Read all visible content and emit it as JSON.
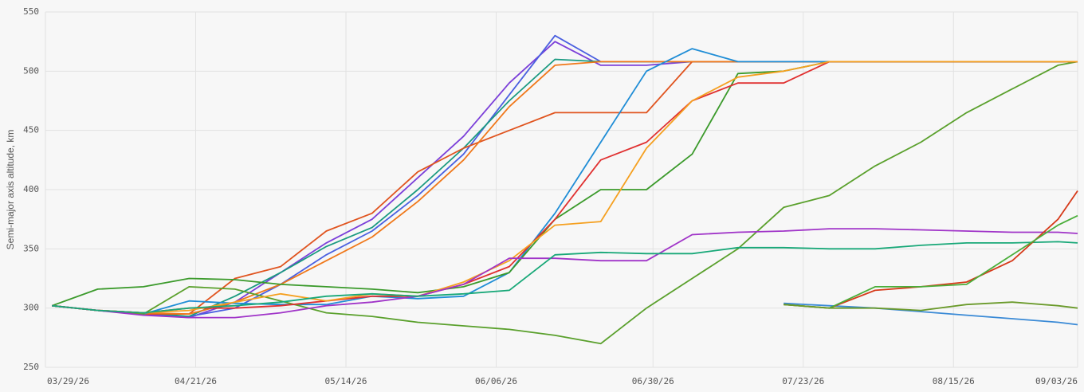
{
  "chart_data": {
    "type": "line",
    "y_label": "Semi-major axis altitude, km",
    "x": [
      "03/30/26",
      "04/06/26",
      "04/13/26",
      "04/20/26",
      "04/27/26",
      "05/04/26",
      "05/11/26",
      "05/18/26",
      "05/25/26",
      "06/01/26",
      "06/08/26",
      "06/15/26",
      "06/22/26",
      "06/29/26",
      "07/06/26",
      "07/13/26",
      "07/20/26",
      "07/27/26",
      "08/03/26",
      "08/10/26",
      "08/17/26",
      "08/24/26",
      "08/31/26",
      "09/03/26"
    ],
    "xlim": [
      "03/29/26",
      "09/03/26"
    ],
    "xticks": [
      "03/29/26",
      "04/21/26",
      "05/14/26",
      "06/06/26",
      "06/30/26",
      "07/23/26",
      "08/15/26",
      "09/03/26"
    ],
    "ylim": [
      250,
      550
    ],
    "yticks": [
      250,
      300,
      350,
      400,
      450,
      500,
      550
    ],
    "grid": true,
    "series": [
      {
        "color": "#7b3fd9",
        "values": [
          302,
          298,
          295,
          292,
          305,
          330,
          355,
          375,
          410,
          445,
          490,
          525,
          505,
          505,
          508,
          508,
          508,
          508,
          508,
          508,
          508,
          508,
          508,
          508
        ]
      },
      {
        "color": "#4a5fe0",
        "values": [
          302,
          298,
          295,
          293,
          300,
          320,
          345,
          365,
          395,
          430,
          480,
          530,
          508,
          508,
          508,
          508,
          508,
          508,
          508,
          508,
          508,
          508,
          508,
          508
        ]
      },
      {
        "color": "#1a9a80",
        "values": [
          302,
          298,
          296,
          293,
          310,
          330,
          352,
          368,
          400,
          435,
          475,
          510,
          508,
          508,
          508,
          508,
          508,
          508,
          508,
          508,
          508,
          508,
          508,
          508
        ]
      },
      {
        "color": "#e0541f",
        "values": [
          302,
          298,
          295,
          295,
          325,
          335,
          365,
          380,
          415,
          435,
          450,
          465,
          465,
          465,
          508,
          508,
          508,
          508,
          508,
          508,
          508,
          508,
          508,
          508
        ]
      },
      {
        "color": "#f0781a",
        "values": [
          302,
          298,
          296,
          295,
          305,
          320,
          340,
          360,
          390,
          425,
          470,
          505,
          508,
          508,
          508,
          508,
          508,
          508,
          508,
          508,
          508,
          508,
          508,
          508
        ]
      },
      {
        "color": "#1f8dd6",
        "values": [
          302,
          298,
          295,
          306,
          304,
          303,
          303,
          310,
          308,
          310,
          330,
          380,
          440,
          500,
          519,
          508,
          508,
          508,
          508,
          508,
          508,
          508,
          508,
          508
        ]
      },
      {
        "color": "#5aa02c",
        "values": [
          302,
          298,
          295,
          318,
          316,
          306,
          296,
          293,
          288,
          285,
          282,
          277,
          270,
          300,
          325,
          350,
          385,
          395,
          420,
          440,
          465,
          485,
          505,
          508
        ]
      },
      {
        "color": "#3b9a2b",
        "values": [
          302,
          316,
          318,
          325,
          324,
          320,
          318,
          316,
          313,
          318,
          330,
          375,
          400,
          400,
          430,
          498,
          500,
          508,
          508,
          508,
          508,
          508,
          508,
          508
        ]
      },
      {
        "color": "#e03030",
        "values": [
          302,
          298,
          296,
          300,
          300,
          302,
          306,
          310,
          310,
          320,
          335,
          375,
          425,
          440,
          475,
          490,
          490,
          508,
          508,
          508,
          508,
          508,
          508,
          508
        ]
      },
      {
        "color": "#f5a020",
        "values": [
          302,
          298,
          296,
          298,
          305,
          312,
          306,
          312,
          310,
          322,
          340,
          370,
          373,
          435,
          475,
          495,
          500,
          508,
          508,
          508,
          508,
          508,
          508,
          508
        ]
      },
      {
        "color": "#a034c8",
        "values": [
          302,
          298,
          294,
          292,
          292,
          296,
          302,
          305,
          310,
          320,
          342,
          342,
          340,
          340,
          362,
          364,
          365,
          367,
          367,
          366,
          365,
          364,
          364,
          363
        ]
      },
      {
        "color": "#18a878",
        "values": [
          302,
          298,
          296,
          300,
          302,
          305,
          310,
          312,
          310,
          312,
          315,
          345,
          347,
          346,
          346,
          351,
          351,
          350,
          350,
          353,
          355,
          355,
          356,
          355
        ]
      },
      {
        "color": "#3a8ad6",
        "values": [
          null,
          null,
          null,
          null,
          null,
          null,
          null,
          null,
          null,
          null,
          null,
          null,
          null,
          null,
          null,
          null,
          304,
          302,
          300,
          297,
          294,
          291,
          288,
          286
        ]
      },
      {
        "color": "#d63a1a",
        "values": [
          null,
          null,
          null,
          null,
          null,
          null,
          null,
          null,
          null,
          null,
          null,
          null,
          null,
          null,
          null,
          null,
          303,
          300,
          315,
          318,
          322,
          340,
          375,
          399
        ]
      },
      {
        "color": "#4aae3a",
        "values": [
          null,
          null,
          null,
          null,
          null,
          null,
          null,
          null,
          null,
          null,
          null,
          null,
          null,
          null,
          null,
          null,
          303,
          300,
          318,
          318,
          320,
          345,
          370,
          378
        ]
      },
      {
        "color": "#6a9a2a",
        "values": [
          null,
          null,
          null,
          null,
          null,
          null,
          null,
          null,
          null,
          null,
          null,
          null,
          null,
          null,
          null,
          null,
          303,
          300,
          300,
          298,
          303,
          305,
          302,
          300
        ]
      }
    ]
  }
}
